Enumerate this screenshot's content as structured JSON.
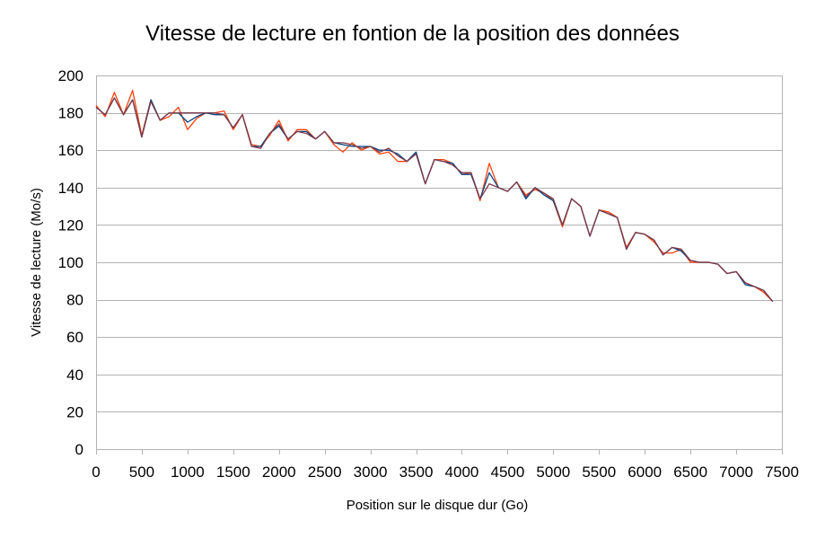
{
  "chart_data": {
    "type": "line",
    "title": "Vitesse de lecture en fontion de la position des données",
    "xlabel": "Position sur le disque dur (Go)",
    "ylabel": "Vitesse de lecture (Mo/s)",
    "xlim": [
      0,
      7500
    ],
    "ylim": [
      0,
      200
    ],
    "xticks": [
      0,
      500,
      1000,
      1500,
      2000,
      2500,
      3000,
      3500,
      4000,
      4500,
      5000,
      5500,
      6000,
      6500,
      7000,
      7500
    ],
    "yticks": [
      0,
      20,
      40,
      60,
      80,
      100,
      120,
      140,
      160,
      180,
      200
    ],
    "grid": true,
    "legend": "none",
    "x": [
      0,
      100,
      200,
      300,
      400,
      500,
      600,
      700,
      800,
      900,
      1000,
      1100,
      1200,
      1300,
      1400,
      1500,
      1600,
      1700,
      1800,
      1900,
      2000,
      2100,
      2200,
      2300,
      2400,
      2500,
      2600,
      2700,
      2800,
      2900,
      3000,
      3100,
      3200,
      3300,
      3400,
      3500,
      3600,
      3700,
      3800,
      3900,
      4000,
      4100,
      4200,
      4300,
      4400,
      4500,
      4600,
      4700,
      4800,
      4900,
      5000,
      5100,
      5200,
      5300,
      5400,
      5500,
      5600,
      5700,
      5800,
      5900,
      6000,
      6100,
      6200,
      6300,
      6400,
      6500,
      6600,
      6700,
      6800,
      6900,
      7000,
      7100,
      7200,
      7300,
      7400
    ],
    "series": [
      {
        "color": "#ff420e",
        "values": [
          184,
          178,
          191,
          179,
          192,
          168,
          187,
          176,
          178,
          183,
          171,
          177,
          180,
          180,
          181,
          171,
          179,
          163,
          162,
          168,
          176,
          165,
          171,
          171,
          166,
          170,
          163,
          159,
          164,
          160,
          162,
          158,
          159,
          154,
          154,
          159,
          142,
          155,
          155,
          153,
          147,
          148,
          133,
          153,
          140,
          138,
          143,
          136,
          139,
          137,
          133,
          119,
          134,
          130,
          114,
          128,
          127,
          124,
          108,
          116,
          115,
          111,
          105,
          105,
          107,
          100,
          100,
          100,
          99,
          94,
          95,
          89,
          87,
          84,
          79
        ]
      },
      {
        "color": "#004586",
        "values": [
          183,
          179,
          188,
          179,
          187,
          167,
          187,
          176,
          180,
          180,
          175,
          178,
          180,
          179,
          179,
          172,
          179,
          162,
          162,
          169,
          173,
          166,
          170,
          170,
          166,
          170,
          164,
          163,
          162,
          162,
          162,
          160,
          160,
          158,
          154,
          159,
          142,
          155,
          154,
          153,
          147,
          147,
          134,
          148,
          140,
          138,
          143,
          134,
          140,
          136,
          133,
          120,
          134,
          130,
          114,
          128,
          126,
          124,
          107,
          116,
          115,
          112,
          104,
          108,
          106,
          101,
          100,
          100,
          99,
          94,
          95,
          88,
          87,
          85,
          79
        ]
      },
      {
        "color": "#7e3a4a",
        "values": [
          183,
          179,
          188,
          179,
          187,
          167,
          186,
          176,
          180,
          180,
          180,
          180,
          180,
          180,
          179,
          172,
          179,
          162,
          161,
          169,
          174,
          166,
          170,
          169,
          166,
          170,
          164,
          164,
          163,
          161,
          162,
          159,
          161,
          157,
          154,
          158,
          142,
          155,
          154,
          152,
          148,
          148,
          134,
          142,
          140,
          138,
          143,
          135,
          140,
          137,
          134,
          120,
          134,
          130,
          114,
          128,
          126,
          124,
          107,
          116,
          115,
          112,
          104,
          108,
          107,
          101,
          100,
          100,
          99,
          94,
          95,
          89,
          87,
          85,
          79
        ]
      }
    ]
  }
}
